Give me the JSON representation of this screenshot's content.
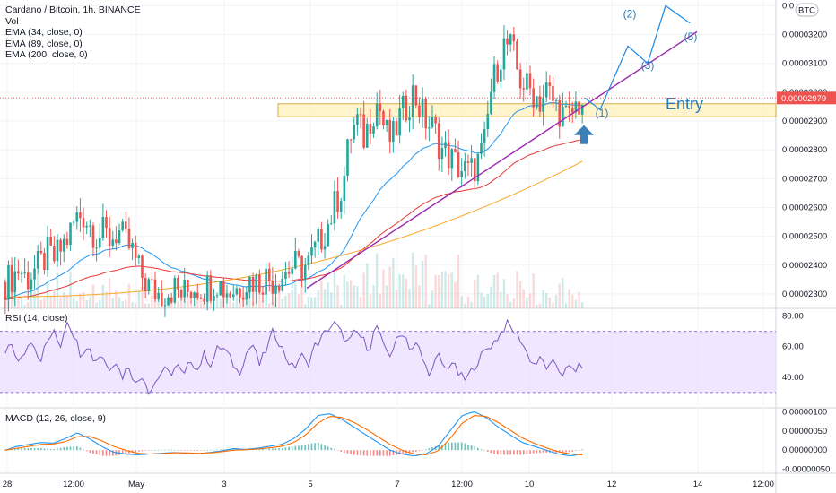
{
  "legend": {
    "title": "Cardano / Bitcoin, 1h, BINANCE",
    "vol": "Vol",
    "ema34": "EMA (34, close, 0)",
    "ema89": "EMA (89, close, 0)",
    "ema200": "EMA (200, close, 0)"
  },
  "rsi_label": "RSI (14, close)",
  "macd_label": "MACD (12, 26, close, 9)",
  "colors": {
    "up": "#26a69a",
    "down": "#ef5350",
    "ema34": "#2196f3",
    "ema89": "#e53935",
    "ema200": "#f9a825",
    "trend": "#9c27b0",
    "projection": "#1e88e5",
    "zone": "#fff3c4",
    "rsi": "#7e57c2",
    "macd": "#2196f3",
    "signal": "#ff6d00"
  },
  "chart_data": {
    "type": "candlestick",
    "symbol": "Cardano / Bitcoin",
    "interval": "1h",
    "exchange": "BINANCE",
    "x_ticks": [
      "28",
      "12:00",
      "May",
      "3",
      "5",
      "7",
      "12:00",
      "10",
      "12",
      "14",
      "12:00"
    ],
    "price_ticks": [
      "0.00000000",
      "0.00003200",
      "0.00003100",
      "0.00003000",
      "0.00002900",
      "0.00002800",
      "0.00002700",
      "0.00002600",
      "0.00002500",
      "0.00002400",
      "0.00002300"
    ],
    "price_ticks_shown": [
      "0.0",
      "0.00003200",
      "0.00003100",
      "0.00003000",
      "0.00002900",
      "0.00002800",
      "0.00002700",
      "0.00002600",
      "0.00002500",
      "0.00002400",
      "0.00002300"
    ],
    "currency_badge": "BTC",
    "last_price": "0.00002979",
    "ylim": [
      2.25e-05,
      3.32e-05
    ],
    "price_path": [
      2.34e-05,
      2.36e-05,
      2.39e-05,
      2.35e-05,
      2.38e-05,
      2.4e-05,
      2.44e-05,
      2.42e-05,
      2.46e-05,
      2.5e-05,
      2.56e-05,
      2.58e-05,
      2.54e-05,
      2.5e-05,
      2.51e-05,
      2.49e-05,
      2.52e-05,
      2.48e-05,
      2.45e-05,
      2.38e-05,
      2.34e-05,
      2.31e-05,
      2.3e-05,
      2.31e-05,
      2.32e-05,
      2.3e-05,
      2.31e-05,
      2.33e-05,
      2.32e-05,
      2.33e-05,
      2.35e-05,
      2.32e-05,
      2.31e-05,
      2.32e-05,
      2.34e-05,
      2.35e-05,
      2.34e-05,
      2.36e-05,
      2.35e-05,
      2.36e-05,
      2.38e-05,
      2.4e-05,
      2.39e-05,
      2.4e-05,
      2.45e-05,
      2.5e-05,
      2.55e-05,
      2.62e-05,
      2.68e-05,
      2.85e-05,
      2.9e-05,
      2.84e-05,
      2.92e-05,
      2.97e-05,
      2.86e-05,
      2.83e-05,
      2.91e-05,
      2.95e-05,
      3e-05,
      2.94e-05,
      2.89e-05,
      2.87e-05,
      2.8e-05,
      2.78e-05,
      2.75e-05,
      2.73e-05,
      2.72e-05,
      2.75e-05,
      2.8e-05,
      3e-05,
      3.1e-05,
      3.17e-05,
      3.15e-05,
      3.05e-05,
      3.02e-05,
      3e-05,
      2.97e-05,
      3.01e-05,
      2.96e-05,
      2.93e-05,
      2.9e-05,
      2.95e-05,
      2.97e-05
    ],
    "annotations": [
      "(1)",
      "(2)",
      "(3)",
      "(5)",
      "Entry"
    ],
    "indicators": [
      "Vol",
      "EMA (34, close, 0)",
      "EMA (89, close, 0)",
      "EMA (200, close, 0)"
    ]
  },
  "rsi_data": {
    "type": "line",
    "name": "RSI (14, close)",
    "levels": [
      30,
      70
    ],
    "ticks": [
      "80.00",
      "60.00",
      "40.00"
    ],
    "ylim": [
      20,
      85
    ],
    "path": [
      55,
      62,
      48,
      58,
      66,
      50,
      62,
      70,
      60,
      78,
      68,
      55,
      62,
      50,
      56,
      45,
      52,
      40,
      48,
      35,
      42,
      30,
      38,
      45,
      42,
      48,
      40,
      52,
      45,
      55,
      48,
      60,
      58,
      50,
      42,
      55,
      62,
      48,
      58,
      70,
      62,
      52,
      45,
      55,
      48,
      60,
      65,
      72,
      75,
      68,
      62,
      70,
      65,
      58,
      75,
      60,
      55,
      64,
      70,
      58,
      62,
      48,
      42,
      55,
      45,
      50,
      42,
      38,
      45,
      52,
      58,
      62,
      68,
      75,
      70,
      65,
      55,
      48,
      52,
      45,
      50,
      42,
      46,
      45,
      48
    ]
  },
  "macd_data": {
    "type": "line",
    "name": "MACD (12, 26, close, 9)",
    "ticks": [
      "0.00000100",
      "0.00000050",
      "0.00000000",
      "-0.00000050"
    ],
    "ylim": [
      -6e-07,
      1.1e-06
    ],
    "macd": [
      0,
      1e-07,
      1.5e-07,
      2e-07,
      1.8e-07,
      3e-07,
      4.5e-07,
      3e-07,
      1e-07,
      -5e-08,
      -1e-07,
      -1.2e-07,
      -1e-07,
      -8e-08,
      -6e-08,
      -8e-08,
      -1e-07,
      -6e-08,
      -2e-08,
      4e-08,
      2e-08,
      5e-08,
      1e-07,
      1.5e-07,
      3e-07,
      5.5e-07,
      9e-07,
      9.5e-07,
      8e-07,
      6e-07,
      4e-07,
      2e-07,
      0.0,
      -1e-07,
      -1.5e-07,
      -1e-07,
      1e-07,
      5e-07,
      9e-07,
      1e-06,
      8.5e-07,
      6e-07,
      4e-07,
      2e-07,
      1e-07,
      0.0,
      -1e-07,
      -1.5e-07,
      -1e-07
    ],
    "signal": [
      0,
      5e-08,
      1e-07,
      1.5e-07,
      1.6e-07,
      2.2e-07,
      3.5e-07,
      3.6e-07,
      2.5e-07,
      1e-07,
      0.0,
      -8e-08,
      -1e-07,
      -9e-08,
      -7e-08,
      -7e-08,
      -8e-08,
      -7e-08,
      -4e-08,
      0.0,
      1e-08,
      3e-08,
      6e-08,
      1e-07,
      2e-07,
      4e-07,
      7e-07,
      8.8e-07,
      8.5e-07,
      7.2e-07,
      5.5e-07,
      3.5e-07,
      1.5e-07,
      0.0,
      -1e-07,
      -1.2e-07,
      -2e-08,
      3e-07,
      7e-07,
      9e-07,
      8.8e-07,
      7.2e-07,
      5.2e-07,
      3.2e-07,
      1.8e-07,
      6e-08,
      -4e-08,
      -1e-07,
      -1.2e-07
    ]
  }
}
